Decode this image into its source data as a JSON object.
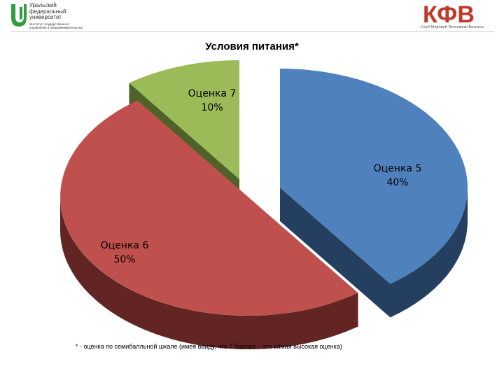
{
  "header": {
    "university_name": "Уральский\nфедеральный\nуниверситет",
    "institute_text": "Институт государственного\nуправления и предпринимательства",
    "brand_logo_text": "КФВ",
    "brand_caption": "Клуб Мировой Экономики Бизнеса"
  },
  "chart_data": {
    "type": "pie",
    "title": "Условия питания*",
    "style": "3d-exploded",
    "slices": [
      {
        "name": "Оценка 5",
        "value": 40,
        "pct_label": "40%",
        "color": "#4f81bd",
        "side_color": "#243f60"
      },
      {
        "name": "Оценка 6",
        "value": 50,
        "pct_label": "50%",
        "color": "#c0504d",
        "side_color": "#632523"
      },
      {
        "name": "Оценка 7",
        "value": 10,
        "pct_label": "10%",
        "color": "#9bbb59",
        "side_color": "#4f6228"
      }
    ],
    "footnote": "* - оценка по семибалльной шкале (имея ввиду, что 7 баллов – это самая высокая оценка)"
  }
}
